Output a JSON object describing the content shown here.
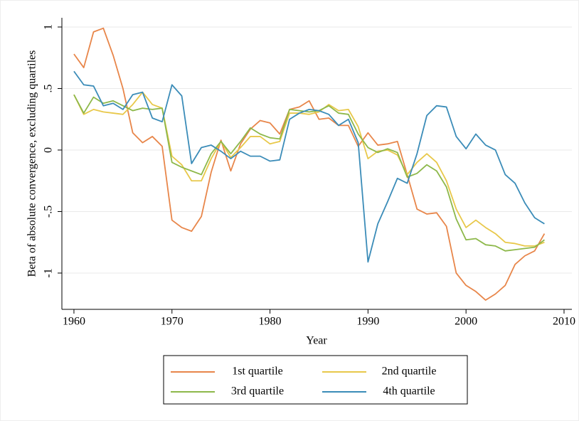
{
  "chart_data": {
    "type": "line",
    "x_label": "Year",
    "y_label": "Beta of absolute convergence, excluding quartiles",
    "x": [
      1960,
      1961,
      1962,
      1963,
      1964,
      1965,
      1966,
      1967,
      1968,
      1969,
      1970,
      1971,
      1972,
      1973,
      1974,
      1975,
      1976,
      1977,
      1978,
      1979,
      1980,
      1981,
      1982,
      1983,
      1984,
      1985,
      1986,
      1987,
      1988,
      1989,
      1990,
      1991,
      1992,
      1993,
      1994,
      1995,
      1996,
      1997,
      1998,
      1999,
      2000,
      2001,
      2002,
      2003,
      2004,
      2005,
      2006,
      2007,
      2008
    ],
    "series": [
      {
        "name": "1st quartile",
        "color": "#e8864a",
        "values": [
          0.78,
          0.67,
          0.96,
          0.99,
          0.77,
          0.5,
          0.14,
          0.06,
          0.11,
          0.03,
          -0.57,
          -0.63,
          -0.66,
          -0.54,
          -0.18,
          0.08,
          -0.17,
          0.05,
          0.17,
          0.24,
          0.22,
          0.13,
          0.33,
          0.35,
          0.4,
          0.25,
          0.26,
          0.2,
          0.2,
          0.03,
          0.14,
          0.04,
          0.05,
          0.07,
          -0.2,
          -0.48,
          -0.52,
          -0.51,
          -0.62,
          -1.0,
          -1.1,
          -1.15,
          -1.22,
          -1.17,
          -1.1,
          -0.93,
          -0.86,
          -0.82,
          -0.68
        ]
      },
      {
        "name": "2nd quartile",
        "color": "#e8c84a",
        "values": [
          0.45,
          0.29,
          0.33,
          0.31,
          0.3,
          0.29,
          0.37,
          0.47,
          0.37,
          0.34,
          -0.05,
          -0.12,
          -0.25,
          -0.25,
          -0.07,
          0.07,
          -0.06,
          0.02,
          0.11,
          0.11,
          0.05,
          0.07,
          0.3,
          0.3,
          0.29,
          0.31,
          0.37,
          0.32,
          0.33,
          0.19,
          -0.07,
          -0.01,
          0.0,
          -0.04,
          -0.2,
          -0.1,
          -0.03,
          -0.1,
          -0.25,
          -0.48,
          -0.63,
          -0.57,
          -0.63,
          -0.68,
          -0.75,
          -0.76,
          -0.78,
          -0.78,
          -0.75
        ]
      },
      {
        "name": "3rd quartile",
        "color": "#8db84a",
        "values": [
          0.45,
          0.3,
          0.43,
          0.38,
          0.4,
          0.36,
          0.32,
          0.34,
          0.33,
          0.34,
          -0.1,
          -0.14,
          -0.17,
          -0.2,
          -0.03,
          0.07,
          -0.03,
          0.07,
          0.18,
          0.13,
          0.1,
          0.09,
          0.33,
          0.32,
          0.31,
          0.32,
          0.36,
          0.3,
          0.29,
          0.13,
          0.02,
          -0.02,
          0.01,
          -0.02,
          -0.22,
          -0.19,
          -0.12,
          -0.17,
          -0.3,
          -0.56,
          -0.73,
          -0.72,
          -0.77,
          -0.78,
          -0.82,
          -0.81,
          -0.8,
          -0.79,
          -0.73
        ]
      },
      {
        "name": "4th quartile",
        "color": "#3b8cb8",
        "values": [
          0.64,
          0.53,
          0.52,
          0.36,
          0.38,
          0.33,
          0.45,
          0.47,
          0.26,
          0.23,
          0.53,
          0.44,
          -0.11,
          0.02,
          0.04,
          -0.01,
          -0.07,
          -0.01,
          -0.05,
          -0.05,
          -0.09,
          -0.08,
          0.25,
          0.3,
          0.33,
          0.32,
          0.29,
          0.2,
          0.25,
          0.06,
          -0.91,
          -0.6,
          -0.42,
          -0.23,
          -0.27,
          -0.03,
          0.28,
          0.36,
          0.35,
          0.11,
          0.01,
          0.13,
          0.04,
          0.0,
          -0.2,
          -0.27,
          -0.43,
          -0.55,
          -0.6
        ]
      }
    ],
    "xlim": [
      1958.77,
      2010.8
    ],
    "ylim": [
      -1.295,
      1.075
    ],
    "xticks": [
      1960,
      1970,
      1980,
      1990,
      2000,
      2010
    ],
    "yticks": [
      {
        "value": -1,
        "label": "-1"
      },
      {
        "value": -0.5,
        "label": "-.5"
      },
      0,
      {
        "value": 0.5,
        "label": ".5"
      },
      1
    ],
    "grid": true,
    "legend": "bottom"
  }
}
